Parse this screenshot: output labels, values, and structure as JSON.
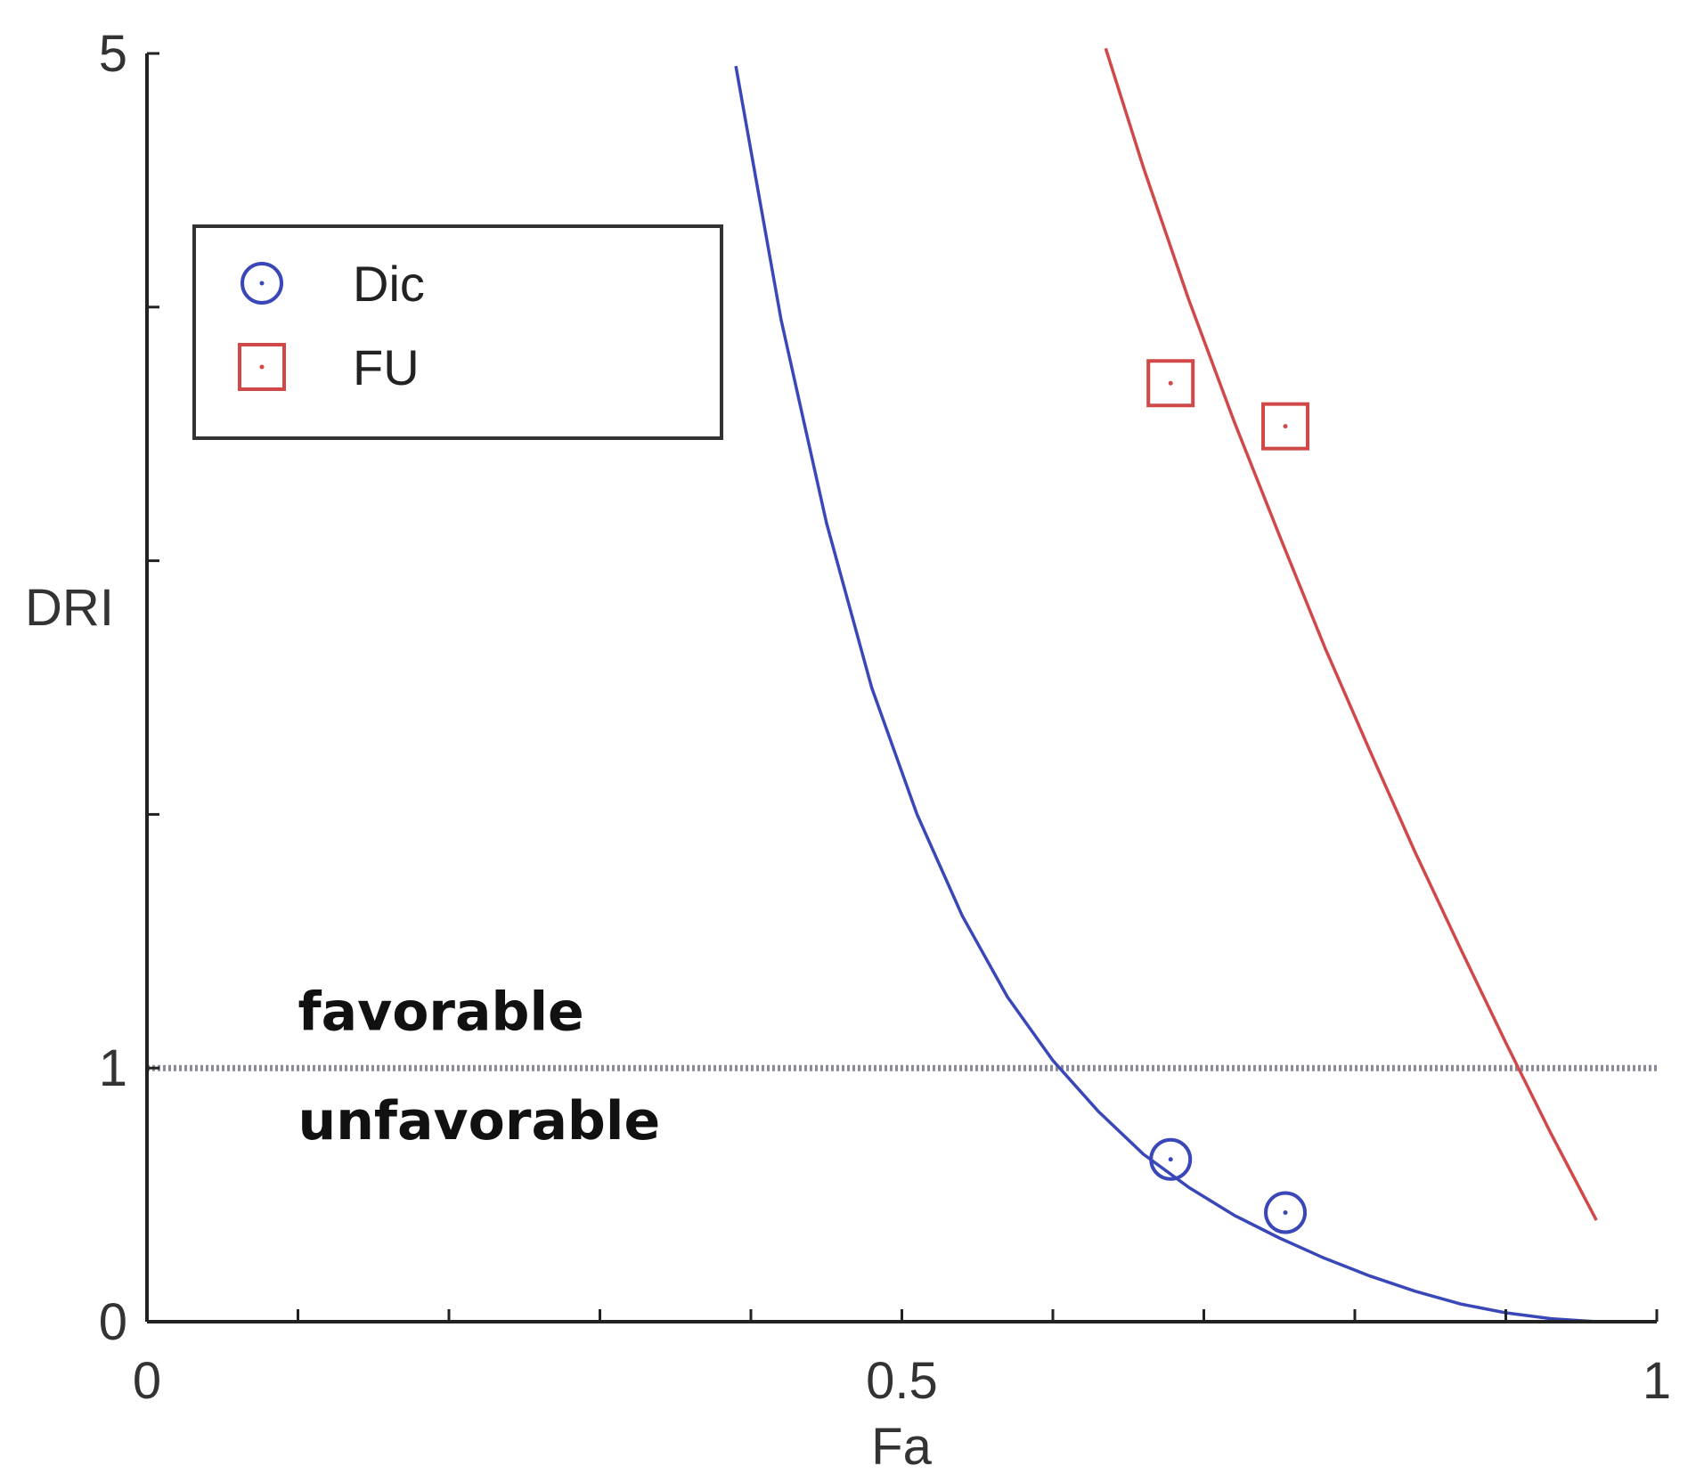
{
  "chart_data": {
    "type": "scatter",
    "xlabel": "Fa",
    "ylabel": "DRI",
    "xlim": [
      0,
      1
    ],
    "ylim": [
      0,
      5
    ],
    "x_ticks": [
      0,
      0.1,
      0.2,
      0.3,
      0.4,
      0.5,
      0.6,
      0.7,
      0.8,
      0.9,
      1
    ],
    "x_tick_labels": [
      {
        "value": 0,
        "label": "0"
      },
      {
        "value": 0.5,
        "label": "0.5"
      },
      {
        "value": 1,
        "label": "1"
      }
    ],
    "y_ticks": [
      0,
      1,
      2,
      3,
      4,
      5
    ],
    "y_tick_labels": [
      {
        "value": 0,
        "label": "0"
      },
      {
        "value": 1,
        "label": "1"
      },
      {
        "value": 5,
        "label": "5"
      }
    ],
    "grid": false,
    "legend_position": "top-left",
    "reference_line": {
      "y": 1,
      "style": "dotted",
      "color": "#8a8a9a"
    },
    "annotations": [
      {
        "text": "favorable",
        "x": 0.1,
        "y": 1.15
      },
      {
        "text": "unfavorable",
        "x": 0.1,
        "y": 0.72
      }
    ],
    "series": [
      {
        "name": "Dic",
        "marker": "circle",
        "color": "#3a47b8",
        "points": [
          {
            "x": 0.678,
            "y": 0.64
          },
          {
            "x": 0.754,
            "y": 0.43
          }
        ],
        "curve": [
          {
            "x": 0.39,
            "y": 4.95
          },
          {
            "x": 0.42,
            "y": 3.95
          },
          {
            "x": 0.45,
            "y": 3.15
          },
          {
            "x": 0.48,
            "y": 2.5
          },
          {
            "x": 0.51,
            "y": 2.0
          },
          {
            "x": 0.54,
            "y": 1.6
          },
          {
            "x": 0.57,
            "y": 1.28
          },
          {
            "x": 0.6,
            "y": 1.03
          },
          {
            "x": 0.63,
            "y": 0.83
          },
          {
            "x": 0.66,
            "y": 0.66
          },
          {
            "x": 0.69,
            "y": 0.53
          },
          {
            "x": 0.72,
            "y": 0.42
          },
          {
            "x": 0.75,
            "y": 0.33
          },
          {
            "x": 0.78,
            "y": 0.25
          },
          {
            "x": 0.81,
            "y": 0.18
          },
          {
            "x": 0.84,
            "y": 0.12
          },
          {
            "x": 0.87,
            "y": 0.07
          },
          {
            "x": 0.9,
            "y": 0.035
          },
          {
            "x": 0.93,
            "y": 0.012
          },
          {
            "x": 0.96,
            "y": 0.0
          }
        ]
      },
      {
        "name": "FU",
        "marker": "square",
        "color": "#d04848",
        "points": [
          {
            "x": 0.678,
            "y": 3.7
          },
          {
            "x": 0.754,
            "y": 3.53
          }
        ],
        "curve": [
          {
            "x": 0.635,
            "y": 5.02
          },
          {
            "x": 0.66,
            "y": 4.55
          },
          {
            "x": 0.69,
            "y": 4.03
          },
          {
            "x": 0.72,
            "y": 3.55
          },
          {
            "x": 0.75,
            "y": 3.1
          },
          {
            "x": 0.78,
            "y": 2.66
          },
          {
            "x": 0.81,
            "y": 2.25
          },
          {
            "x": 0.84,
            "y": 1.85
          },
          {
            "x": 0.87,
            "y": 1.47
          },
          {
            "x": 0.9,
            "y": 1.1
          },
          {
            "x": 0.93,
            "y": 0.74
          },
          {
            "x": 0.96,
            "y": 0.4
          }
        ]
      }
    ]
  }
}
